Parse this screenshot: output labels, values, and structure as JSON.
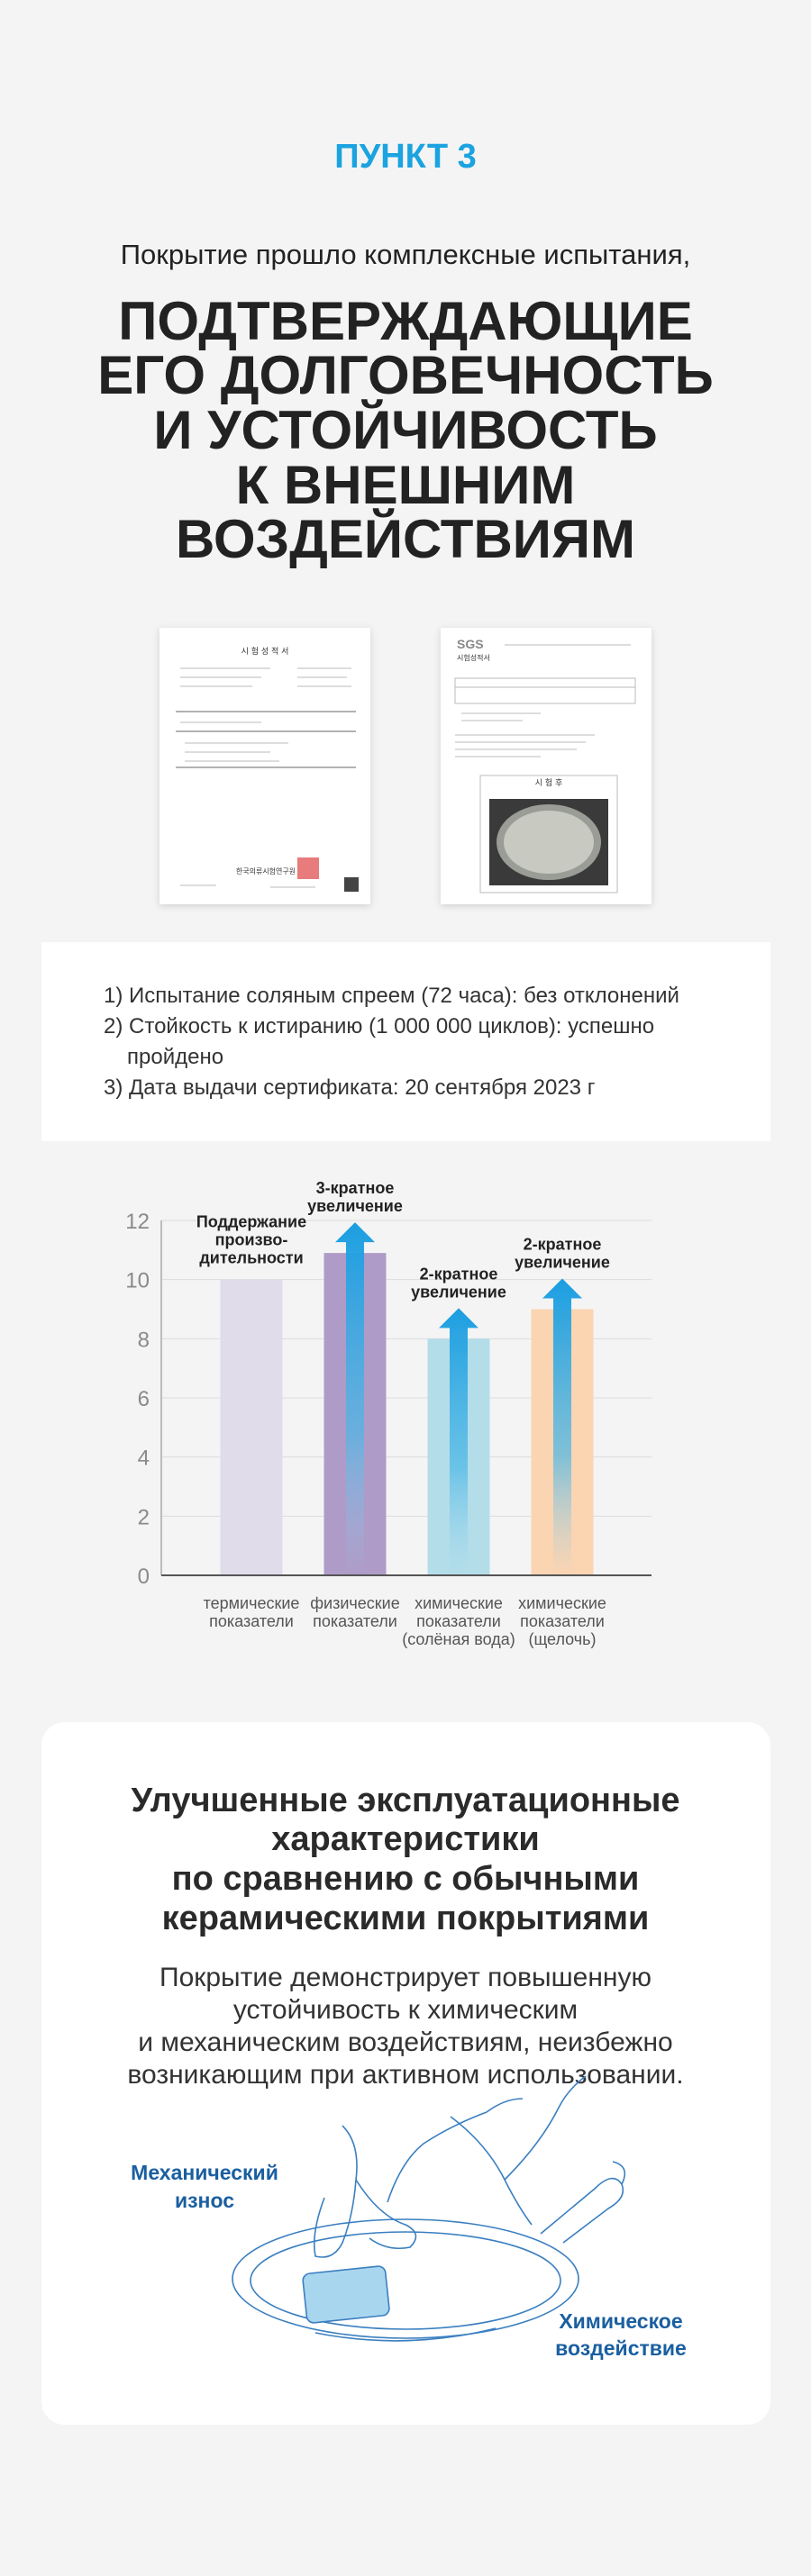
{
  "header": {
    "section": "ПУНКТ 3",
    "lead": "Покрытие прошло комплексные испытания,",
    "title": [
      "ПОДТВЕРЖДАЮЩИЕ",
      "ЕГО ДОЛГОВЕЧНОСТЬ",
      "И УСТОЙЧИВОСТЬ",
      "К ВНЕШНИМ",
      "ВОЗДЕЙСТВИЯМ"
    ]
  },
  "certificates": [
    {
      "title": "시 험 성 적 서",
      "issuer": "한국의류시험연구원"
    },
    {
      "logo": "SGS",
      "title": "시험성적서",
      "photo_caption": "시 험 후"
    }
  ],
  "tests": [
    "1) Испытание соляным спреем (72 часа): без отклонений",
    "2) Стойкость к истиранию (1 000 000 циклов): успешно пройдено",
    "3) Дата выдачи сертификата: 20 сентября 2023 г"
  ],
  "chart_data": {
    "type": "bar",
    "categories": [
      [
        "термические",
        "показатели"
      ],
      [
        "физические",
        "показатели"
      ],
      [
        "химические",
        "показатели",
        "(солёная вода)"
      ],
      [
        "химические",
        "показатели",
        "(щелочь)"
      ]
    ],
    "values": [
      10,
      10.9,
      8,
      9
    ],
    "colors": [
      "#e1dcea",
      "#af9bc8",
      "#b3dde9",
      "#fbd4b2"
    ],
    "annotations": [
      [
        "Поддержание",
        "произво-",
        "дительности"
      ],
      [
        "3-кратное",
        "увеличение"
      ],
      [
        "2-кратное",
        "увеличение"
      ],
      [
        "2-кратное",
        "увеличение"
      ]
    ],
    "arrows": [
      false,
      true,
      true,
      true
    ],
    "ylim": [
      0,
      12
    ],
    "yticks": [
      0,
      2,
      4,
      6,
      8,
      10,
      12
    ],
    "grid": true
  },
  "card": {
    "title": [
      "Улучшенные эксплуатационные",
      "характеристики",
      "по сравнению с обычными",
      "керамическими покрытиями"
    ],
    "text": [
      "Покрытие демонстрирует повышенную",
      "устойчивость к химическим",
      "и механическим воздействиям, неизбежно",
      "возникающим при активном использовании."
    ],
    "label_left": [
      "Механический",
      "износ"
    ],
    "label_right": [
      "Химическое",
      "воздействие"
    ]
  }
}
